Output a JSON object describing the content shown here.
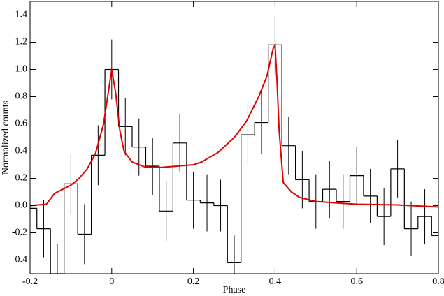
{
  "chart_data": {
    "type": "step",
    "xlabel": "Phase",
    "ylabel": "Normalized counts",
    "xlim": [
      -0.2,
      0.8
    ],
    "ylim": [
      -0.5,
      1.5
    ],
    "xticks": [
      -0.2,
      0,
      0.2,
      0.4,
      0.6,
      0.8
    ],
    "yticks": [
      -0.4,
      -0.2,
      {
        "value": 0,
        "label": "0.0"
      },
      0.2,
      0.4,
      0.6,
      0.8,
      {
        "value": 1,
        "label": "1.0"
      },
      1.2,
      1.4
    ],
    "series": [
      {
        "style": "step",
        "color": "#000000",
        "x": [
          -0.2,
          -0.1667,
          -0.1333,
          -0.1,
          -0.0667,
          -0.0333,
          0,
          0.0333,
          0.0667,
          0.1,
          0.1333,
          0.1667,
          0.2,
          0.2333,
          0.2667,
          0.3,
          0.3333,
          0.3667,
          0.4,
          0.4333,
          0.4667,
          0.5,
          0.5333,
          0.5667,
          0.6,
          0.6333,
          0.6667,
          0.7,
          0.7333,
          0.7667,
          0.8
        ],
        "values": [
          -0.02,
          -0.17,
          -0.5,
          0.16,
          -0.21,
          0.37,
          1.0,
          0.58,
          0.43,
          0.29,
          -0.04,
          0.46,
          0.04,
          0.02,
          0.0,
          -0.42,
          0.52,
          0.61,
          1.18,
          0.44,
          0.19,
          0.03,
          0.12,
          0.03,
          0.22,
          0.07,
          -0.08,
          0.27,
          -0.17,
          -0.08,
          -0.22
        ],
        "errors": [
          0.15,
          0.21,
          0.22,
          0.22,
          0.22,
          0.22,
          0.22,
          0.21,
          0.21,
          0.21,
          0.22,
          0.21,
          0.21,
          0.21,
          0.19,
          0.2,
          0.22,
          0.23,
          0.22,
          0.21,
          0.21,
          0.2,
          0.21,
          0.2,
          0.21,
          0.2,
          0.21,
          0.21,
          0.2,
          0.2,
          0.2
        ]
      },
      {
        "style": "line",
        "color": "#e00000",
        "x": [
          -0.2,
          -0.16,
          -0.15,
          -0.14,
          -0.12,
          -0.1,
          -0.08,
          -0.06,
          -0.04,
          -0.02,
          -0.01,
          0,
          0.01,
          0.02,
          0.03,
          0.05,
          0.08,
          0.12,
          0.16,
          0.2,
          0.22,
          0.26,
          0.3,
          0.33,
          0.36,
          0.38,
          0.395,
          0.4,
          0.405,
          0.41,
          0.42,
          0.44,
          0.46,
          0.5,
          0.55,
          0.6,
          0.7,
          0.8
        ],
        "values": [
          0,
          0.01,
          0.05,
          0.09,
          0.12,
          0.15,
          0.2,
          0.27,
          0.38,
          0.6,
          0.8,
          1.0,
          0.82,
          0.55,
          0.4,
          0.32,
          0.285,
          0.28,
          0.29,
          0.3,
          0.32,
          0.39,
          0.5,
          0.62,
          0.8,
          0.95,
          1.15,
          1.18,
          0.9,
          0.55,
          0.17,
          0.1,
          0.06,
          0.03,
          0.02,
          0.01,
          0.005,
          -0.01
        ]
      }
    ]
  }
}
